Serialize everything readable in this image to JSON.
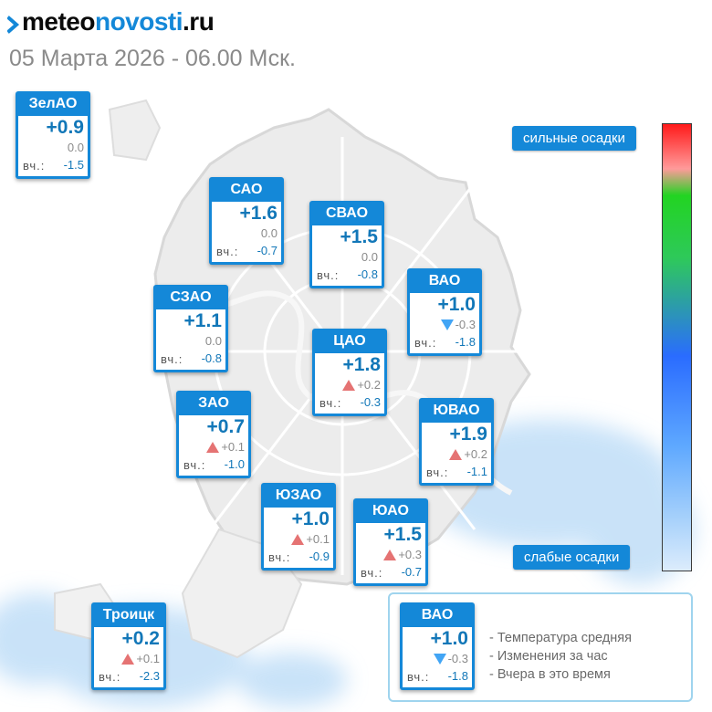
{
  "header": {
    "logo_part1": "meteo",
    "logo_part2": "novosti",
    "logo_part3": ".ru",
    "subtitle": "05 Марта 2026 - 06.00 Мск."
  },
  "labels": {
    "yesterday_prefix": "вч.:"
  },
  "colors": {
    "brand_blue": "#1488d8",
    "temp_text": "#1277b8",
    "up_arrow": "#e57373",
    "down_arrow": "#42a5f5"
  },
  "districts": [
    {
      "name": "ЗелАО",
      "temp": "+0.9",
      "change_hour": "0.0",
      "trend": "none",
      "yesterday": "-1.5"
    },
    {
      "name": "САО",
      "temp": "+1.6",
      "change_hour": "0.0",
      "trend": "none",
      "yesterday": "-0.7"
    },
    {
      "name": "СВАО",
      "temp": "+1.5",
      "change_hour": "0.0",
      "trend": "none",
      "yesterday": "-0.8"
    },
    {
      "name": "ВАО",
      "temp": "+1.0",
      "change_hour": "-0.3",
      "trend": "down",
      "yesterday": "-1.8"
    },
    {
      "name": "СЗАО",
      "temp": "+1.1",
      "change_hour": "0.0",
      "trend": "none",
      "yesterday": "-0.8"
    },
    {
      "name": "ЦАО",
      "temp": "+1.8",
      "change_hour": "+0.2",
      "trend": "up",
      "yesterday": "-0.3"
    },
    {
      "name": "ЗАО",
      "temp": "+0.7",
      "change_hour": "+0.1",
      "trend": "up",
      "yesterday": "-1.0"
    },
    {
      "name": "ЮВАО",
      "temp": "+1.9",
      "change_hour": "+0.2",
      "trend": "up",
      "yesterday": "-1.1"
    },
    {
      "name": "ЮЗАО",
      "temp": "+1.0",
      "change_hour": "+0.1",
      "trend": "up",
      "yesterday": "-0.9"
    },
    {
      "name": "ЮАО",
      "temp": "+1.5",
      "change_hour": "+0.3",
      "trend": "up",
      "yesterday": "-0.7"
    },
    {
      "name": "Троицк",
      "temp": "+0.2",
      "change_hour": "+0.1",
      "trend": "up",
      "yesterday": "-2.3"
    }
  ],
  "precip_scale": {
    "top_label": "сильные осадки",
    "bottom_label": "слабые осадки",
    "gradient_colors": [
      "#ff1a1a",
      "#ff9a9a",
      "#22d422",
      "#2ec95a",
      "#2a6cff",
      "#5ea8ff",
      "#a5d0fb",
      "#dcecfc"
    ]
  },
  "legend": {
    "example": {
      "name": "ВАО",
      "temp": "+1.0",
      "change_hour": "-0.3",
      "trend": "down",
      "yesterday": "-1.8"
    },
    "line_temp": "- Температура средняя",
    "line_change": "- Изменения за час",
    "line_yesterday": "- Вчера в это время"
  }
}
